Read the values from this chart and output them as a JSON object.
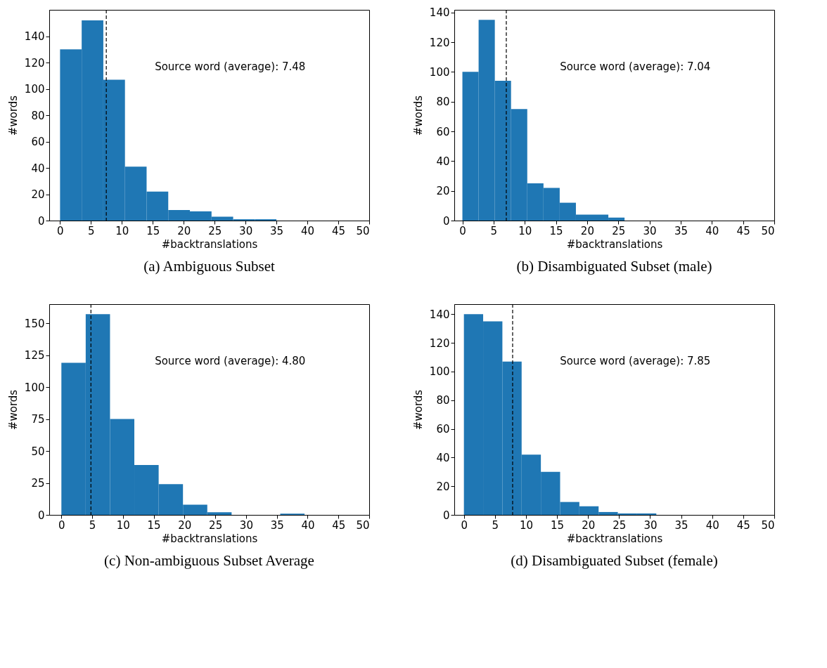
{
  "chart_data": [
    {
      "type": "histogram",
      "title": "(a) Ambiguous Subset",
      "xlabel": "#backtranslations",
      "ylabel": "#words",
      "color": "#1f77b4",
      "bins": [
        0,
        3.5,
        7,
        10.5,
        14,
        17.5,
        21,
        24.5,
        28,
        31.5,
        35
      ],
      "values": [
        130,
        152,
        107,
        41,
        22,
        8,
        7,
        3,
        1,
        1
      ],
      "xlim": [
        -1.75,
        50
      ],
      "ylim": [
        0,
        160
      ],
      "xticks": [
        0,
        5,
        10,
        15,
        20,
        25,
        30,
        35,
        40,
        45,
        50
      ],
      "yticks": [
        0,
        20,
        40,
        60,
        80,
        100,
        120,
        140
      ],
      "ref_lines": [
        {
          "axis": "x",
          "value": 7.48,
          "color": "#000000",
          "line_style": "dashed"
        }
      ],
      "annotations": [
        "Source word (average): 7.48"
      ],
      "grid": false
    },
    {
      "type": "histogram",
      "title": "(b) Disambiguated Subset (male)",
      "xlabel": "#backtranslations",
      "ylabel": "#words",
      "color": "#1f77b4",
      "bins": [
        0,
        2.6,
        5.2,
        7.8,
        10.4,
        13,
        15.6,
        18.2,
        20.8,
        23.4,
        26
      ],
      "values": [
        100,
        135,
        94,
        75,
        25,
        22,
        12,
        4,
        4,
        2
      ],
      "xlim": [
        -1.3,
        50
      ],
      "ylim": [
        0,
        141.75
      ],
      "xticks": [
        0,
        5,
        10,
        15,
        20,
        25,
        30,
        35,
        40,
        45,
        50
      ],
      "yticks": [
        0,
        20,
        40,
        60,
        80,
        100,
        120,
        140
      ],
      "ref_lines": [
        {
          "axis": "x",
          "value": 7.04,
          "color": "#000000",
          "line_style": "dashed"
        }
      ],
      "annotations": [
        "Source word (average): 7.04"
      ],
      "grid": false
    },
    {
      "type": "histogram",
      "title": "(c) Non-ambiguous Subset Average",
      "xlabel": "#backtranslations",
      "ylabel": "#words",
      "color": "#1f77b4",
      "bins": [
        0,
        3.95,
        7.9,
        11.85,
        15.8,
        19.75,
        23.7,
        27.65,
        31.6,
        35.55,
        39.5
      ],
      "values": [
        119,
        157,
        75,
        39,
        24,
        8,
        2,
        0,
        0,
        1
      ],
      "xlim": [
        -1.975,
        50
      ],
      "ylim": [
        0,
        164.85
      ],
      "xticks": [
        0,
        5,
        10,
        15,
        20,
        25,
        30,
        35,
        40,
        45,
        50
      ],
      "yticks": [
        0,
        25,
        50,
        75,
        100,
        125,
        150
      ],
      "ref_lines": [
        {
          "axis": "x",
          "value": 4.8,
          "color": "#000000",
          "line_style": "dashed"
        }
      ],
      "annotations": [
        "Source word (average): 4.80"
      ],
      "grid": false
    },
    {
      "type": "histogram",
      "title": "(d) Disambiguated Subset (female)",
      "xlabel": "#backtranslations",
      "ylabel": "#words",
      "color": "#1f77b4",
      "bins": [
        0,
        3.1,
        6.2,
        9.3,
        12.4,
        15.5,
        18.6,
        21.7,
        24.8,
        27.9,
        31
      ],
      "values": [
        140,
        135,
        107,
        42,
        30,
        9,
        6,
        2,
        1,
        1
      ],
      "xlim": [
        -1.55,
        50
      ],
      "ylim": [
        0,
        147
      ],
      "xticks": [
        0,
        5,
        10,
        15,
        20,
        25,
        30,
        35,
        40,
        45,
        50
      ],
      "yticks": [
        0,
        20,
        40,
        60,
        80,
        100,
        120,
        140
      ],
      "ref_lines": [
        {
          "axis": "x",
          "value": 7.85,
          "color": "#000000",
          "line_style": "dashed"
        }
      ],
      "annotations": [
        "Source word (average): 7.85"
      ],
      "grid": false
    }
  ]
}
